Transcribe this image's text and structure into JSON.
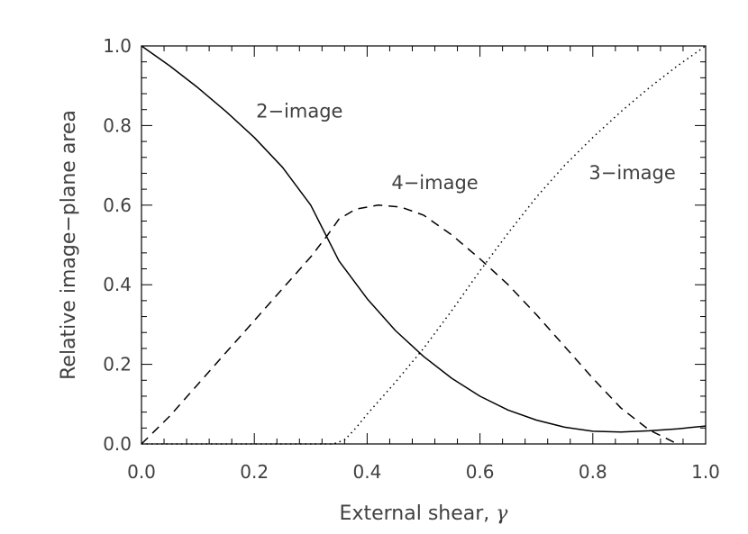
{
  "chart_data": {
    "type": "line",
    "title": "",
    "xlabel": "External shear, ",
    "xlabel_symbol": "γ",
    "ylabel": "Relative image−plane area",
    "xlim": [
      0.0,
      1.0
    ],
    "ylim": [
      0.0,
      1.0
    ],
    "grid": false,
    "legend": "none",
    "x_ticks": [
      "0.0",
      "0.2",
      "0.4",
      "0.6",
      "0.8",
      "1.0"
    ],
    "y_ticks": [
      "0.0",
      "0.2",
      "0.4",
      "0.6",
      "0.8",
      "1.0"
    ],
    "series": [
      {
        "name": "2−image",
        "style": "solid",
        "x": [
          0.0,
          0.05,
          0.1,
          0.15,
          0.2,
          0.25,
          0.3,
          0.35,
          0.4,
          0.45,
          0.5,
          0.55,
          0.6,
          0.65,
          0.7,
          0.75,
          0.8,
          0.85,
          0.9,
          0.95,
          1.0
        ],
        "y": [
          1.0,
          0.95,
          0.895,
          0.835,
          0.77,
          0.695,
          0.6,
          0.46,
          0.365,
          0.285,
          0.22,
          0.165,
          0.12,
          0.085,
          0.06,
          0.042,
          0.032,
          0.03,
          0.033,
          0.038,
          0.045
        ]
      },
      {
        "name": "4−image",
        "style": "dashed",
        "x": [
          0.0,
          0.05,
          0.1,
          0.15,
          0.2,
          0.25,
          0.3,
          0.33,
          0.35,
          0.38,
          0.42,
          0.46,
          0.5,
          0.55,
          0.6,
          0.65,
          0.7,
          0.75,
          0.8,
          0.85,
          0.9,
          0.95
        ],
        "y": [
          0.0,
          0.07,
          0.15,
          0.23,
          0.31,
          0.39,
          0.47,
          0.525,
          0.565,
          0.59,
          0.6,
          0.595,
          0.575,
          0.525,
          0.465,
          0.4,
          0.325,
          0.245,
          0.165,
          0.09,
          0.035,
          0.0
        ]
      },
      {
        "name": "3−image",
        "style": "dotted",
        "x": [
          0.0,
          0.1,
          0.2,
          0.3,
          0.34,
          0.36,
          0.38,
          0.4,
          0.45,
          0.5,
          0.55,
          0.6,
          0.65,
          0.7,
          0.75,
          0.8,
          0.85,
          0.9,
          0.95,
          1.0
        ],
        "y": [
          0.0,
          0.0,
          0.0,
          0.0,
          0.0,
          0.01,
          0.04,
          0.075,
          0.155,
          0.24,
          0.335,
          0.435,
          0.53,
          0.62,
          0.7,
          0.77,
          0.835,
          0.895,
          0.95,
          1.0
        ]
      }
    ]
  }
}
